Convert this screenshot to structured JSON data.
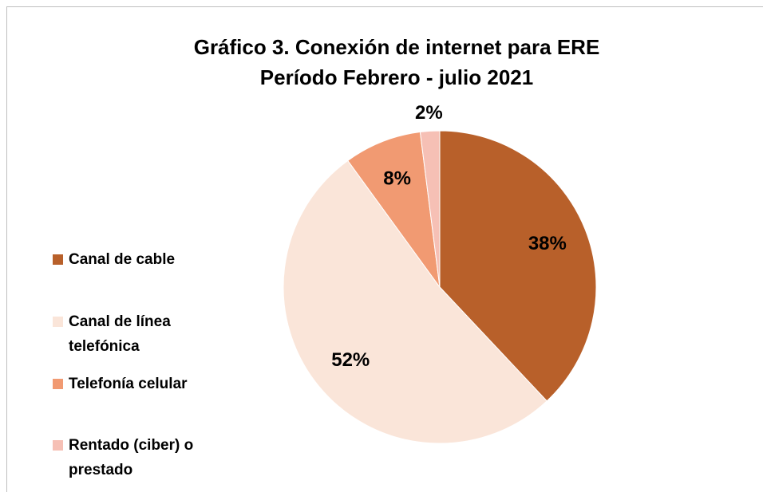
{
  "chart_data": {
    "type": "pie",
    "title": "Gráfico 3. Conexión de internet para ERE",
    "subtitle": "Período Febrero - julio 2021",
    "categories": [
      "Canal de cable",
      "Canal de línea telefónica",
      "Telefonía celular",
      "Rentado (ciber) o prestado"
    ],
    "values": [
      38,
      52,
      8,
      2
    ],
    "value_labels": [
      "38%",
      "52%",
      "8%",
      "2%"
    ],
    "colors": [
      "#b8602a",
      "#fae5d9",
      "#f19a72",
      "#f6c0b5"
    ],
    "legend": "left"
  }
}
